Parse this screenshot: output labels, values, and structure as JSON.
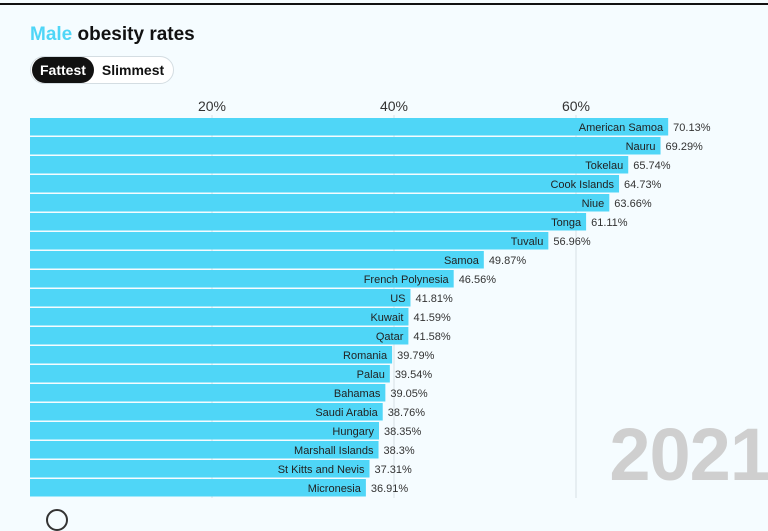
{
  "title": {
    "accent": "Male",
    "rest": " obesity rates"
  },
  "toggle": {
    "options": [
      {
        "label": "Fattest",
        "active": true
      },
      {
        "label": "Slimmest",
        "active": false
      }
    ]
  },
  "year_watermark": "2021",
  "colors": {
    "bar": "#4fd6f7",
    "accent": "#4fd6f7",
    "background": "#f5fcff",
    "text": "#333333"
  },
  "chart_data": {
    "type": "bar",
    "orientation": "horizontal",
    "title": "Male obesity rates",
    "x_axis": {
      "ticks": [
        20,
        40,
        60
      ],
      "tick_labels": [
        "20%",
        "40%",
        "60%"
      ],
      "position": "top",
      "range": [
        0,
        81
      ]
    },
    "categories": [
      "American Samoa",
      "Nauru",
      "Tokelau",
      "Cook Islands",
      "Niue",
      "Tonga",
      "Tuvalu",
      "Samoa",
      "French Polynesia",
      "US",
      "Kuwait",
      "Qatar",
      "Romania",
      "Palau",
      "Bahamas",
      "Saudi Arabia",
      "Hungary",
      "Marshall Islands",
      "St Kitts and Nevis",
      "Micronesia"
    ],
    "values": [
      70.13,
      69.29,
      65.74,
      64.73,
      63.66,
      61.11,
      56.96,
      49.87,
      46.56,
      41.81,
      41.59,
      41.58,
      39.79,
      39.54,
      39.05,
      38.76,
      38.35,
      38.3,
      37.31,
      36.91
    ],
    "value_labels": [
      "70.13%",
      "69.29%",
      "65.74%",
      "64.73%",
      "63.66%",
      "61.11%",
      "56.96%",
      "49.87%",
      "46.56%",
      "41.81%",
      "41.59%",
      "41.58%",
      "39.79%",
      "39.54%",
      "39.05%",
      "38.76%",
      "38.35%",
      "38.3%",
      "37.31%",
      "36.91%"
    ]
  }
}
